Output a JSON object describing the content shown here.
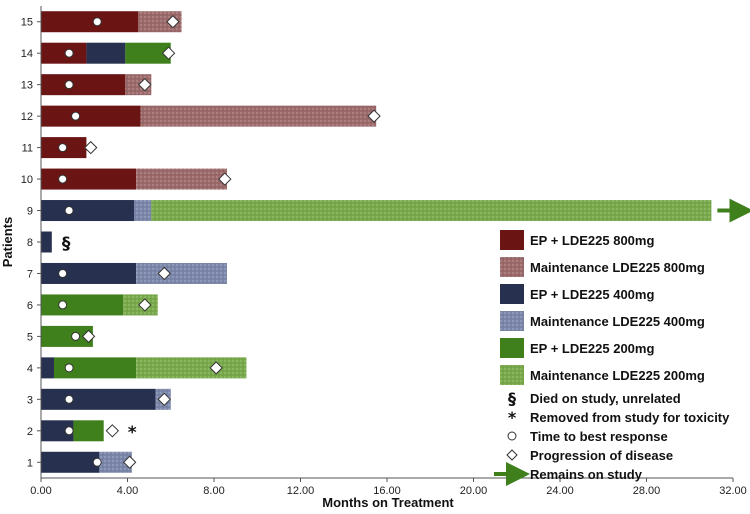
{
  "chart_data": {
    "type": "bar",
    "orientation": "horizontal-stacked",
    "xlabel": "Months on Treatment",
    "ylabel": "Patients",
    "xlim": [
      0,
      32
    ],
    "xticks": [
      "0.00",
      "4.00",
      "8.00",
      "12.00",
      "16.00",
      "20.00",
      "24.00",
      "28.00",
      "32.00"
    ],
    "categories": [
      "1",
      "2",
      "3",
      "4",
      "5",
      "6",
      "7",
      "8",
      "9",
      "10",
      "11",
      "12",
      "13",
      "14",
      "15"
    ],
    "patients": [
      {
        "id": "1",
        "segments": [
          {
            "phase": "ep400",
            "start": 0,
            "end": 2.7
          },
          {
            "phase": "maint400",
            "start": 2.7,
            "end": 4.2
          }
        ],
        "best_response": 2.6,
        "progression": 4.1
      },
      {
        "id": "2",
        "segments": [
          {
            "phase": "ep400",
            "start": 0,
            "end": 1.5
          },
          {
            "phase": "ep200",
            "start": 1.5,
            "end": 2.9
          }
        ],
        "best_response": 1.3,
        "progression": 3.3,
        "marker": "*"
      },
      {
        "id": "3",
        "segments": [
          {
            "phase": "ep400",
            "start": 0,
            "end": 5.3
          },
          {
            "phase": "maint400",
            "start": 5.3,
            "end": 6.0
          }
        ],
        "best_response": 1.3,
        "progression": 5.7
      },
      {
        "id": "4",
        "segments": [
          {
            "phase": "ep400",
            "start": 0,
            "end": 0.6
          },
          {
            "phase": "ep200",
            "start": 0.6,
            "end": 4.4
          },
          {
            "phase": "maint200",
            "start": 4.4,
            "end": 9.5
          }
        ],
        "best_response": 1.3,
        "progression": 8.1
      },
      {
        "id": "5",
        "segments": [
          {
            "phase": "ep200",
            "start": 0,
            "end": 2.4
          }
        ],
        "best_response": 1.6,
        "progression": 2.2
      },
      {
        "id": "6",
        "segments": [
          {
            "phase": "ep200",
            "start": 0,
            "end": 3.8
          },
          {
            "phase": "maint200",
            "start": 3.8,
            "end": 5.4
          }
        ],
        "best_response": 1.0,
        "progression": 4.8
      },
      {
        "id": "7",
        "segments": [
          {
            "phase": "ep400",
            "start": 0,
            "end": 4.4
          },
          {
            "phase": "maint400",
            "start": 4.4,
            "end": 8.6
          }
        ],
        "best_response": 1.0,
        "progression": 5.7
      },
      {
        "id": "8",
        "segments": [
          {
            "phase": "ep400",
            "start": 0,
            "end": 0.5
          }
        ],
        "marker": "§"
      },
      {
        "id": "9",
        "segments": [
          {
            "phase": "ep400",
            "start": 0,
            "end": 4.3
          },
          {
            "phase": "maint400",
            "start": 4.3,
            "end": 5.1
          },
          {
            "phase": "maint200",
            "start": 5.1,
            "end": 31.0
          }
        ],
        "best_response": 1.3,
        "remains_on_study": true
      },
      {
        "id": "10",
        "segments": [
          {
            "phase": "ep800",
            "start": 0,
            "end": 4.4
          },
          {
            "phase": "maint800",
            "start": 4.4,
            "end": 8.6
          }
        ],
        "best_response": 1.0,
        "progression": 8.5
      },
      {
        "id": "11",
        "segments": [
          {
            "phase": "ep800",
            "start": 0,
            "end": 2.1
          }
        ],
        "best_response": 1.0,
        "progression": 2.3
      },
      {
        "id": "12",
        "segments": [
          {
            "phase": "ep800",
            "start": 0,
            "end": 4.6
          },
          {
            "phase": "maint800",
            "start": 4.6,
            "end": 15.5
          }
        ],
        "best_response": 1.6,
        "progression": 15.4
      },
      {
        "id": "13",
        "segments": [
          {
            "phase": "ep800",
            "start": 0,
            "end": 3.9
          },
          {
            "phase": "maint800",
            "start": 3.9,
            "end": 5.1
          }
        ],
        "best_response": 1.3,
        "progression": 4.8
      },
      {
        "id": "14",
        "segments": [
          {
            "phase": "ep800",
            "start": 0,
            "end": 2.1
          },
          {
            "phase": "ep400",
            "start": 2.1,
            "end": 3.9
          },
          {
            "phase": "ep200",
            "start": 3.9,
            "end": 6.0
          }
        ],
        "best_response": 1.3,
        "progression": 5.9
      },
      {
        "id": "15",
        "segments": [
          {
            "phase": "ep800",
            "start": 0,
            "end": 4.5
          },
          {
            "phase": "maint800",
            "start": 4.5,
            "end": 6.5
          }
        ],
        "best_response": 2.6,
        "progression": 6.1
      }
    ],
    "phases": {
      "ep800": {
        "color": "#6b1414",
        "pattern": false
      },
      "maint800": {
        "color": "#9c6a6a",
        "pattern": true
      },
      "ep400": {
        "color": "#27304f",
        "pattern": false
      },
      "maint400": {
        "color": "#7b87aa",
        "pattern": true
      },
      "ep200": {
        "color": "#3f7f1c",
        "pattern": false
      },
      "maint200": {
        "color": "#78a94a",
        "pattern": true
      }
    },
    "legend": {
      "position": "right",
      "entries": [
        {
          "key": "ep800",
          "label": "EP + LDE225 800mg"
        },
        {
          "key": "maint800",
          "label": "Maintenance LDE225 800mg"
        },
        {
          "key": "ep400",
          "label": "EP + LDE225 400mg"
        },
        {
          "key": "maint400",
          "label": "Maintenance LDE225 400mg"
        },
        {
          "key": "ep200",
          "label": "EP + LDE225 200mg"
        },
        {
          "key": "maint200",
          "label": "Maintenance LDE225 200mg"
        }
      ],
      "symbols": [
        {
          "symbol": "§",
          "label": "Died on study, unrelated"
        },
        {
          "symbol": "*",
          "label": "Removed from study for toxicity"
        },
        {
          "symbol": "circle",
          "label": "Time to best response"
        },
        {
          "symbol": "diamond",
          "label": "Progression of disease"
        },
        {
          "symbol": "arrow",
          "label": "Remains on study"
        }
      ]
    },
    "grid": false
  }
}
